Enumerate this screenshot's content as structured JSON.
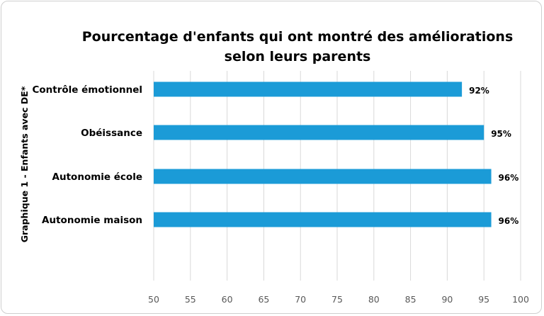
{
  "chart_data": {
    "type": "bar",
    "orientation": "horizontal",
    "title_lines": [
      "Pourcentage d'enfants qui ont montré des améliorations",
      "selon leurs parents"
    ],
    "ylabel": "Graphique 1 - Enfants avec DE*",
    "xlabel": "",
    "categories": [
      "Contrôle émotionnel",
      "Obéissance",
      "Autonomie école",
      "Autonomie maison"
    ],
    "values": [
      92,
      95,
      96,
      96
    ],
    "data_labels": [
      "92%",
      "95%",
      "96%",
      "96%"
    ],
    "xlim": [
      50,
      100
    ],
    "ticks": [
      50,
      55,
      60,
      65,
      70,
      75,
      80,
      85,
      90,
      95,
      100
    ],
    "grid": "vertical",
    "legend": "none",
    "bar_color": "#1b9bd7",
    "grid_color": "#d9d9d9"
  }
}
